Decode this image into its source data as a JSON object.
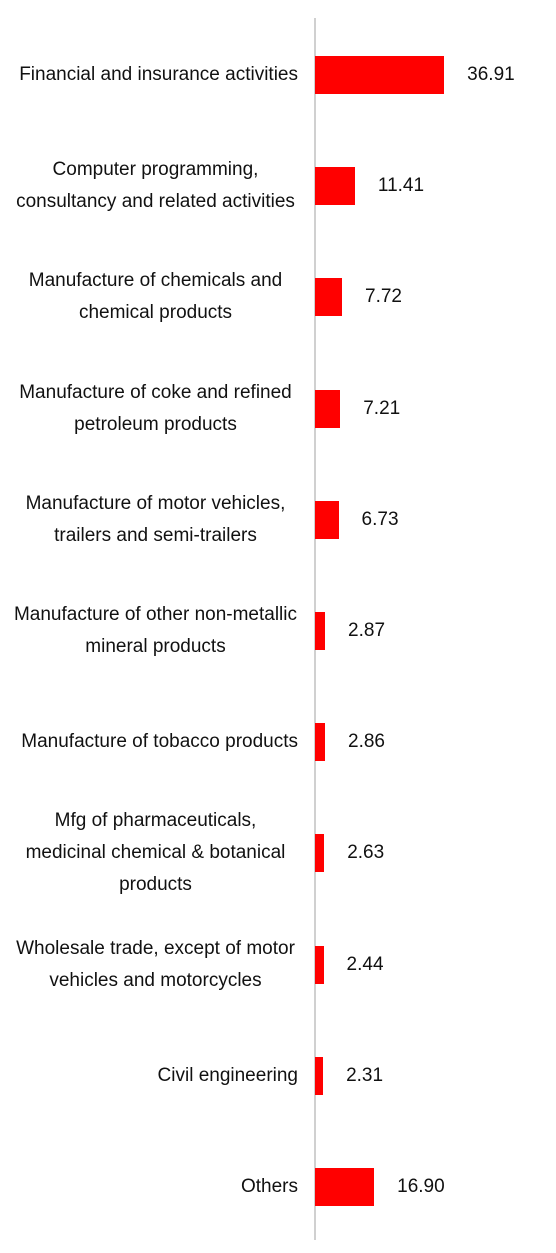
{
  "chart_data": {
    "type": "bar",
    "orientation": "horizontal",
    "color": "#ff0000",
    "categories": [
      "Financial and insurance activities",
      "Computer programming, consultancy and related activities",
      "Manufacture of chemicals and chemical products",
      "Manufacture of coke and refined petroleum products",
      "Manufacture of motor vehicles, trailers and semi-trailers",
      "Manufacture of other non-metallic mineral products",
      "Manufacture of tobacco products",
      "Mfg of pharmaceuticals, medicinal chemical & botanical products",
      "Wholesale trade, except of motor vehicles and motorcycles",
      "Civil engineering",
      "Others"
    ],
    "values": [
      36.91,
      11.41,
      7.72,
      7.21,
      6.73,
      2.87,
      2.86,
      2.63,
      2.44,
      2.31,
      16.9
    ],
    "value_labels": [
      "36.91",
      "11.41",
      "7.72",
      "7.21",
      "6.73",
      "2.87",
      "2.86",
      "2.63",
      "2.44",
      "2.31",
      "16.90"
    ],
    "xlim": [
      0,
      40
    ]
  }
}
